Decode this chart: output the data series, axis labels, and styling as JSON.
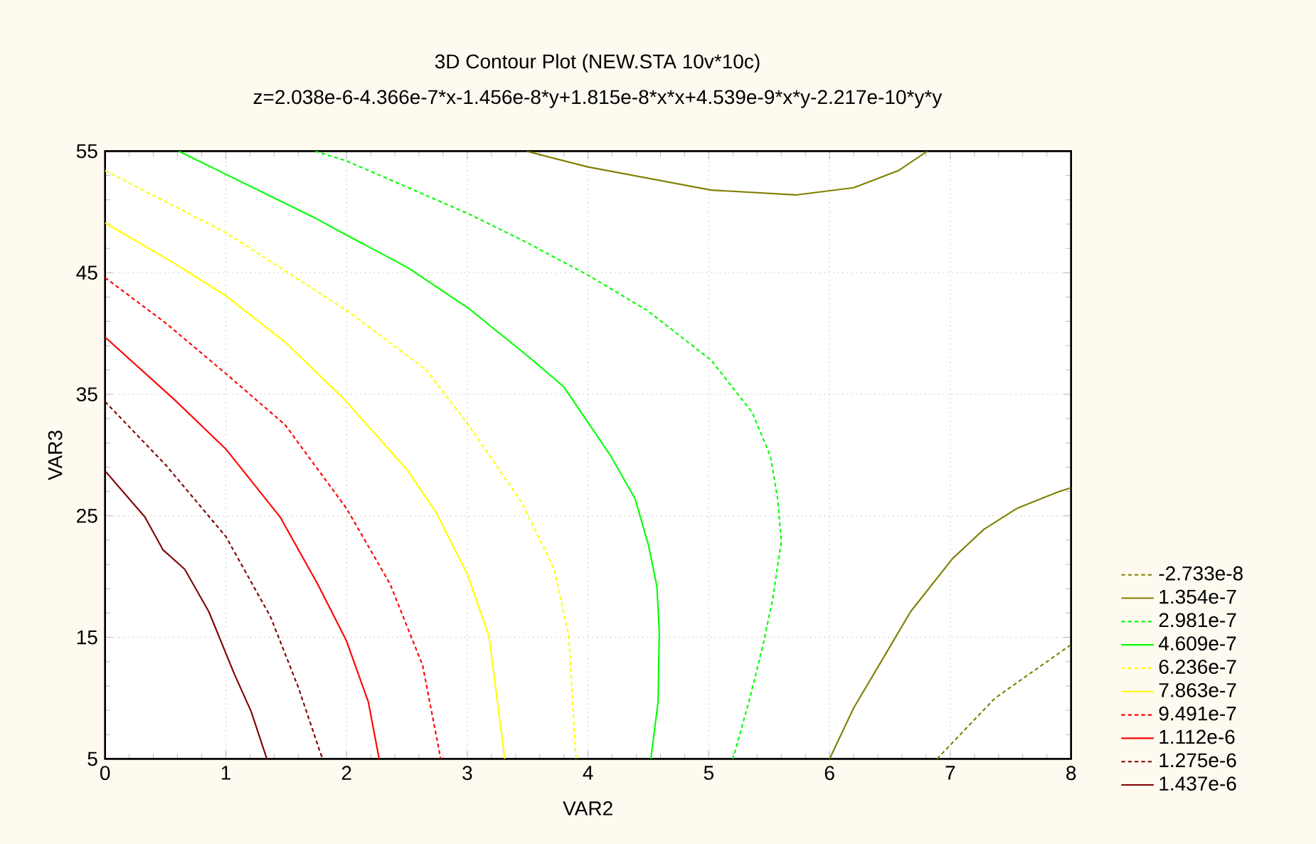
{
  "chart_data": {
    "type": "line",
    "title": "3D Contour Plot (NEW.STA 10v*10c)",
    "subtitle": "z=2.038e-6-4.366e-7*x-1.456e-8*y+1.815e-8*x*x+4.539e-9*x*y-2.217e-10*y*y",
    "xlabel": "VAR2",
    "ylabel": "VAR3",
    "xlim": [
      0,
      8
    ],
    "ylim": [
      5,
      55
    ],
    "xticks": [
      0,
      1,
      2,
      3,
      4,
      5,
      6,
      7,
      8
    ],
    "yticks": [
      5,
      15,
      25,
      35,
      45,
      55
    ],
    "grid": true,
    "legend": "right",
    "series": [
      {
        "name": "-2.733e-8",
        "color": "#808000",
        "line_style": "dashed",
        "x": [
          6.89,
          7.37,
          8.0
        ],
        "values": [
          5,
          10.0,
          14.4
        ]
      },
      {
        "name": "1.354e-7",
        "color": "#808000",
        "line_style": "solid",
        "x": [
          3.49,
          4.0,
          5.02,
          5.72,
          6.2,
          6.57,
          6.81,
          null,
          6.0,
          6.2,
          6.51,
          6.67,
          7.02,
          7.28,
          7.55,
          7.9,
          8.0
        ],
        "values": [
          55,
          53.7,
          51.8,
          51.4,
          52.0,
          53.4,
          55,
          null,
          5,
          9.2,
          14.4,
          17.1,
          21.5,
          23.9,
          25.6,
          27.0,
          27.3
        ]
      },
      {
        "name": "2.981e-7",
        "color": "#00ff00",
        "line_style": "dashed",
        "x": [
          1.74,
          2.0,
          3.02,
          3.47,
          4.0,
          4.49,
          5.02,
          5.36,
          5.51,
          5.57,
          5.6,
          5.53,
          5.45,
          5.34,
          5.2
        ],
        "values": [
          55,
          54.2,
          49.8,
          47.6,
          44.8,
          41.9,
          37.8,
          33.5,
          29.9,
          26.4,
          22.9,
          18.2,
          14.4,
          10.0,
          5
        ]
      },
      {
        "name": "4.609e-7",
        "color": "#00ff00",
        "line_style": "solid",
        "x": [
          0.61,
          1.0,
          1.72,
          2.0,
          2.51,
          3.02,
          3.53,
          3.8,
          4.19,
          4.39,
          4.5,
          4.57,
          4.59,
          4.58,
          4.52
        ],
        "values": [
          55,
          53.1,
          49.6,
          48.1,
          45.4,
          42.0,
          37.9,
          35.6,
          29.9,
          26.4,
          22.6,
          19.2,
          15.5,
          9.7,
          5
        ]
      },
      {
        "name": "6.236e-7",
        "color": "#ffff00",
        "line_style": "dashed",
        "x": [
          0,
          1.0,
          2.0,
          2.66,
          3.0,
          3.45,
          3.72,
          3.84,
          3.9
        ],
        "values": [
          53.4,
          48.3,
          41.9,
          37.0,
          32.6,
          26.1,
          20.6,
          15.1,
          5
        ]
      },
      {
        "name": "7.863e-7",
        "color": "#ffff00",
        "line_style": "solid",
        "x": [
          0,
          0.57,
          1.0,
          1.49,
          1.98,
          2.5,
          2.74,
          3.0,
          3.18,
          3.31
        ],
        "values": [
          49.1,
          45.8,
          43.1,
          39.3,
          34.6,
          28.8,
          25.3,
          20.2,
          15.1,
          5
        ]
      },
      {
        "name": "9.491e-7",
        "color": "#ff0000",
        "line_style": "dashed",
        "x": [
          0,
          0.51,
          1.0,
          1.49,
          2.0,
          2.36,
          2.63,
          2.78
        ],
        "values": [
          44.6,
          40.8,
          36.7,
          32.5,
          25.6,
          19.4,
          12.7,
          5
        ]
      },
      {
        "name": "1.112e-6",
        "color": "#ff0000",
        "line_style": "solid",
        "x": [
          0,
          0.57,
          1.0,
          1.45,
          1.76,
          2.0,
          2.18,
          2.27
        ],
        "values": [
          39.7,
          34.6,
          30.5,
          24.9,
          19.4,
          14.7,
          9.7,
          5
        ]
      },
      {
        "name": "1.275e-6",
        "color": "#800000",
        "line_style": "dashed",
        "x": [
          0,
          0.51,
          1.0,
          1.37,
          1.6,
          1.8
        ],
        "values": [
          34.4,
          29.1,
          23.3,
          16.7,
          10.9,
          5
        ]
      },
      {
        "name": "1.437e-6",
        "color": "#800000",
        "line_style": "solid",
        "x": [
          0,
          0.33,
          0.48,
          0.66,
          0.86,
          1.07,
          1.21,
          1.34
        ],
        "values": [
          28.7,
          24.9,
          22.2,
          20.6,
          17.1,
          12.0,
          8.9,
          5
        ]
      }
    ]
  }
}
